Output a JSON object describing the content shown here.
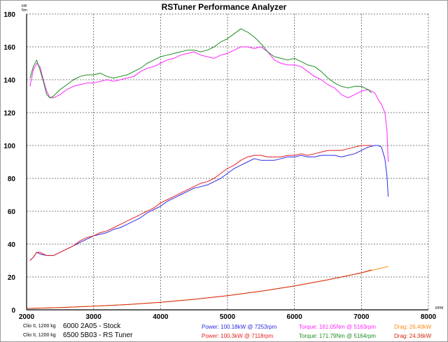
{
  "chart_data": {
    "type": "line",
    "title": "RSTuner Performance Analyzer",
    "xlabel": "RPM",
    "ylabel_units": [
      "kW",
      "Nm"
    ],
    "xlim": [
      2000,
      8000
    ],
    "ylim": [
      0,
      180
    ],
    "x_ticks": [
      2000,
      3000,
      4000,
      5000,
      6000,
      7000,
      8000
    ],
    "y_ticks": [
      0,
      20,
      40,
      60,
      80,
      100,
      120,
      140,
      160,
      180
    ],
    "grid": true,
    "series": [
      {
        "name": "Torque - 6000 2A05 - Stock",
        "color": "#ff22ff",
        "x": [
          2050,
          2100,
          2150,
          2200,
          2250,
          2300,
          2350,
          2400,
          2500,
          2600,
          2700,
          2800,
          2900,
          3000,
          3100,
          3200,
          3300,
          3400,
          3500,
          3600,
          3700,
          3800,
          3900,
          4000,
          4100,
          4200,
          4300,
          4400,
          4500,
          4600,
          4700,
          4800,
          4900,
          5000,
          5100,
          5200,
          5300,
          5400,
          5500,
          5600,
          5700,
          5800,
          5900,
          6000,
          6100,
          6200,
          6300,
          6400,
          6500,
          6600,
          6700,
          6800,
          6900,
          7000,
          7100,
          7200,
          7250,
          7300,
          7350,
          7380,
          7400
        ],
        "y": [
          136,
          146,
          150,
          148,
          140,
          133,
          129,
          129,
          131,
          134,
          136,
          137,
          138,
          138,
          139,
          140,
          139,
          140,
          141,
          142,
          145,
          147,
          148,
          150,
          152,
          153,
          155,
          156,
          157,
          155,
          154,
          153,
          155,
          156,
          158,
          160,
          160,
          159,
          160,
          157,
          152,
          150,
          149,
          149,
          148,
          145,
          142,
          140,
          137,
          135,
          131,
          129,
          131,
          133,
          134,
          132,
          128,
          125,
          120,
          110,
          90
        ]
      },
      {
        "name": "Torque - 6500 5B03 - RS Tuner",
        "color": "#1e8c1e",
        "x": [
          2050,
          2100,
          2150,
          2200,
          2250,
          2300,
          2350,
          2400,
          2500,
          2600,
          2700,
          2800,
          2900,
          3000,
          3100,
          3200,
          3300,
          3400,
          3500,
          3600,
          3700,
          3800,
          3900,
          4000,
          4100,
          4200,
          4300,
          4400,
          4500,
          4600,
          4700,
          4800,
          4900,
          5000,
          5100,
          5200,
          5300,
          5400,
          5500,
          5600,
          5700,
          5800,
          5900,
          6000,
          6100,
          6200,
          6300,
          6400,
          6500,
          6600,
          6700,
          6800,
          6900,
          7000,
          7100,
          7150
        ],
        "y": [
          141,
          148,
          152,
          146,
          139,
          131,
          129,
          130,
          134,
          137,
          140,
          142,
          143,
          143,
          144,
          142,
          141,
          142,
          143,
          145,
          147,
          150,
          152,
          154,
          155,
          156,
          157,
          158,
          158,
          157,
          158,
          160,
          163,
          165,
          168,
          171,
          169,
          166,
          162,
          157,
          154,
          153,
          152,
          153,
          151,
          149,
          148,
          145,
          141,
          138,
          136,
          135,
          136,
          136,
          134,
          132
        ]
      },
      {
        "name": "Power - 6000 2A05 - Stock",
        "color": "#2a2ae6",
        "x": [
          2050,
          2100,
          2150,
          2200,
          2300,
          2400,
          2500,
          2600,
          2700,
          2800,
          2900,
          3000,
          3100,
          3200,
          3300,
          3400,
          3500,
          3600,
          3700,
          3800,
          3900,
          4000,
          4100,
          4200,
          4300,
          4400,
          4500,
          4600,
          4700,
          4800,
          4900,
          5000,
          5100,
          5200,
          5300,
          5400,
          5500,
          5600,
          5700,
          5800,
          5900,
          6000,
          6100,
          6200,
          6300,
          6400,
          6500,
          6600,
          6700,
          6800,
          6900,
          7000,
          7100,
          7200,
          7250,
          7300,
          7350,
          7380,
          7400
        ],
        "y": [
          30,
          32,
          35,
          34,
          33,
          33,
          35,
          37,
          39,
          41,
          43,
          45,
          46,
          47,
          49,
          50,
          52,
          54,
          56,
          59,
          61,
          63,
          66,
          68,
          70,
          72,
          74,
          75,
          76,
          78,
          80,
          83,
          86,
          88,
          90,
          92,
          91,
          91,
          91,
          92,
          93,
          93,
          94,
          93,
          93,
          94,
          94,
          94,
          93,
          94,
          95,
          97,
          99,
          100,
          100,
          99,
          92,
          82,
          69
        ]
      },
      {
        "name": "Power - 6500 5B03 - RS Tuner",
        "color": "#e81e1e",
        "x": [
          2050,
          2100,
          2150,
          2200,
          2300,
          2400,
          2500,
          2600,
          2700,
          2800,
          2900,
          3000,
          3100,
          3200,
          3300,
          3400,
          3500,
          3600,
          3700,
          3800,
          3900,
          4000,
          4100,
          4200,
          4300,
          4400,
          4500,
          4600,
          4700,
          4800,
          4900,
          5000,
          5100,
          5200,
          5300,
          5400,
          5500,
          5600,
          5700,
          5800,
          5900,
          6000,
          6100,
          6200,
          6300,
          6400,
          6500,
          6600,
          6700,
          6800,
          6900,
          7000,
          7100,
          7150
        ],
        "y": [
          30,
          32,
          35,
          35,
          33,
          33,
          35,
          37,
          39,
          42,
          44,
          45,
          47,
          48,
          50,
          52,
          54,
          56,
          58,
          60,
          62,
          65,
          67,
          69,
          71,
          73,
          75,
          77,
          78,
          80,
          83,
          86,
          88,
          91,
          93,
          94,
          94,
          93,
          93,
          93,
          94,
          94,
          95,
          94,
          95,
          96,
          97,
          97,
          97,
          98,
          99,
          100,
          100,
          100
        ]
      },
      {
        "name": "Drag - 6000 2A05 - Stock",
        "color": "#ff8c1a",
        "x": [
          2000,
          2500,
          3000,
          3500,
          4000,
          4500,
          5000,
          5500,
          6000,
          6500,
          7000,
          7400
        ],
        "y": [
          0.8,
          1.4,
          2.2,
          3.2,
          4.6,
          6.4,
          8.6,
          11.3,
          14.5,
          18.3,
          22.5,
          26.4
        ]
      },
      {
        "name": "Drag - 6500 5B03 - RS Tuner",
        "color": "#d42a10",
        "x": [
          2000,
          2500,
          3000,
          3500,
          4000,
          4500,
          5000,
          5500,
          6000,
          6500,
          7000,
          7150
        ],
        "y": [
          0.8,
          1.4,
          2.2,
          3.2,
          4.6,
          6.4,
          8.6,
          11.3,
          14.5,
          18.3,
          22.5,
          24.3
        ]
      }
    ]
  },
  "legend": {
    "rows": [
      {
        "car": "Clio II, 1200 kg",
        "name": "6000 2A05 - Stock",
        "power": "Power: 100.18kW @ 7253rpm",
        "torque": "Torque: 161.05Nm @ 5163rpm",
        "drag": "Drag: 26.40kW",
        "power_color": "#2a2ae6",
        "torque_color": "#ff22ff",
        "drag_color": "#ff8c1a"
      },
      {
        "car": "Clio II, 1200 kg",
        "name": "6500 5B03 - RS Tuner",
        "power": "Power: 100.3kW @ 7118rpm",
        "torque": "Torque: 171.79Nm @ 5164rpm",
        "drag": "Drag: 24.36kW",
        "power_color": "#e81e1e",
        "torque_color": "#1e8c1e",
        "drag_color": "#d42a10"
      }
    ]
  }
}
